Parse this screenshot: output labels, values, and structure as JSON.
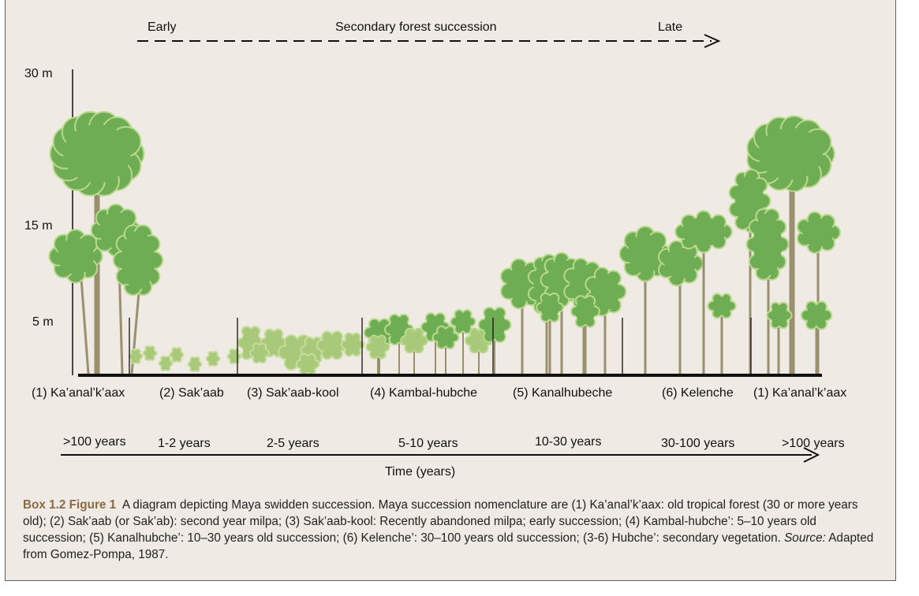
{
  "succession": {
    "early": "Early",
    "title": "Secondary forest succession",
    "late": "Late"
  },
  "height_axis": [
    "30 m",
    "15 m",
    "5 m"
  ],
  "stages": [
    "(1) Ka’anal’k’aax",
    "(2) Sak’aab",
    "(3) Sak’aab-kool",
    "(4) Kambal-hubche",
    "(5) Kanalhubeche",
    "(6) Kelenche",
    "(1) Ka’anal’k’aax"
  ],
  "durations": [
    ">100 years",
    "1-2 years",
    "2-5 years",
    "5-10 years",
    "10-30 years",
    "30-100 years",
    ">100 years"
  ],
  "time_axis_label": "Time (years)",
  "caption": {
    "figure_label": "Box 1.2 Figure 1",
    "text": "A diagram depicting Maya swidden succession. Maya succession nomenclature are (1) Ka’anal’k’aax: old tropical forest (30 or more years old); (2) Sak’aab (or Sak’ab): second year milpa; (3) Sak’aab-kool: Recently abandoned milpa; early succession; (4) Kambal-hubche’: 5–10 years old succession; (5) Kanalhubche’: 10–30 years old succession; (6) Kelenche’: 30–100 years old succession; (3-6) Hubche’: secondary vegetation.",
    "source_label": "Source:",
    "source_text": "Adapted from Gomez-Pompa, 1987."
  },
  "colors": {
    "background": "#efeae3",
    "canopy_dark": "#6fad55",
    "canopy_mid": "#7db85e",
    "canopy_light": "#a8c97a",
    "trunk": "#9a8f6e",
    "figure_label": "#8a6a45"
  }
}
